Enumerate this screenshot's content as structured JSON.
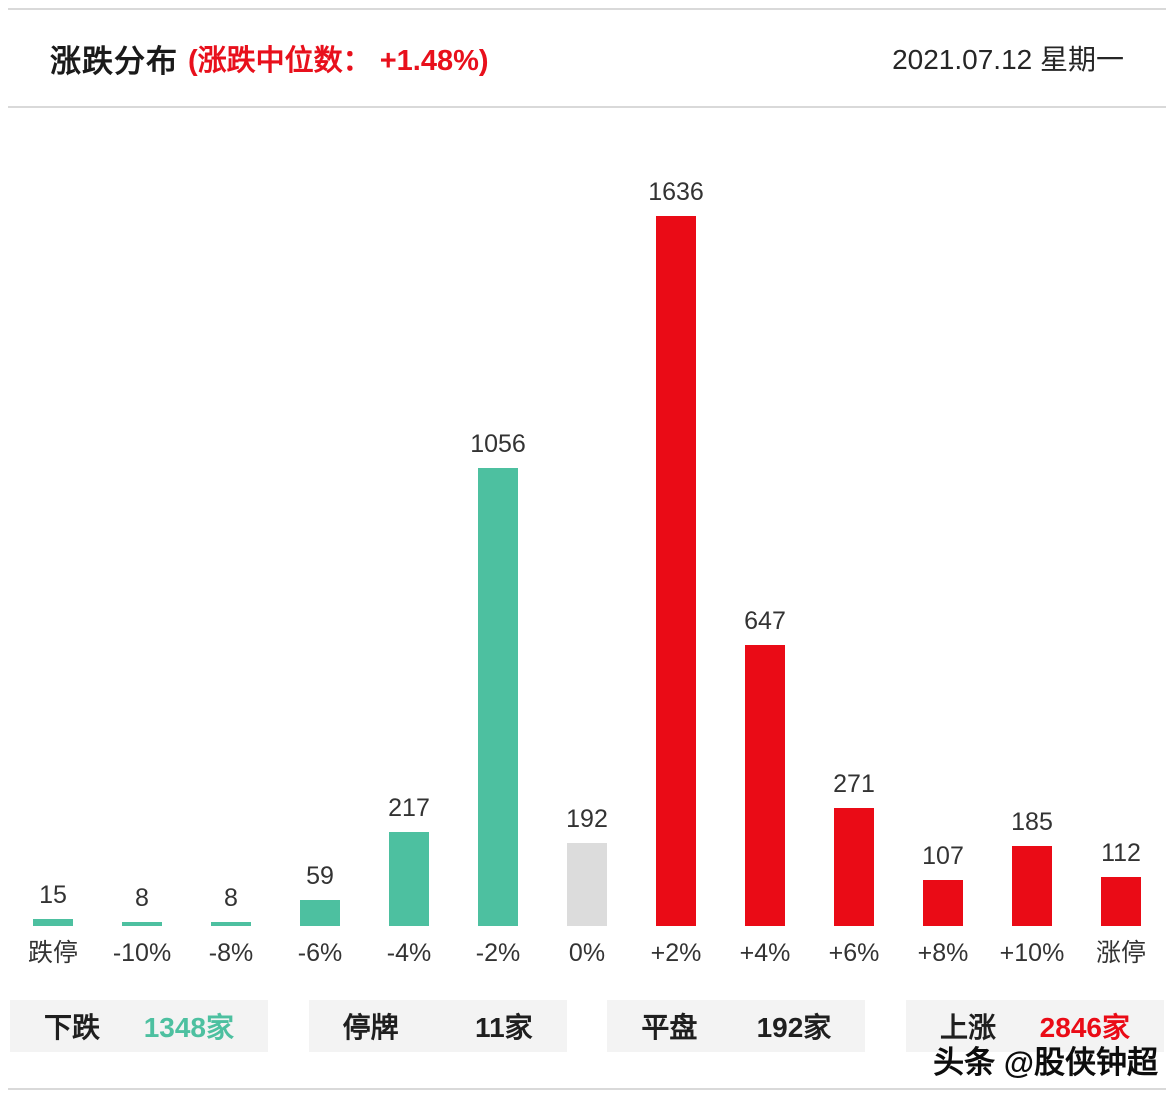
{
  "header": {
    "title": "涨跌分布",
    "subtitle": "(涨跌中位数： +1.48%)",
    "date": "2021.07.12 星期一"
  },
  "chart_data": {
    "type": "bar",
    "title": "涨跌分布",
    "subtitle": "涨跌中位数 +1.48%",
    "categories": [
      "跌停",
      "-10%",
      "-8%",
      "-6%",
      "-4%",
      "-2%",
      "0%",
      "+2%",
      "+4%",
      "+6%",
      "+8%",
      "+10%",
      "涨停"
    ],
    "values": [
      15,
      8,
      8,
      59,
      217,
      1056,
      192,
      1636,
      647,
      271,
      107,
      185,
      112
    ],
    "bar_colors": [
      "green",
      "green",
      "green",
      "green",
      "green",
      "green",
      "gray",
      "red",
      "red",
      "red",
      "red",
      "red",
      "red"
    ],
    "xlabel": "",
    "ylabel": "",
    "ylim": [
      0,
      1700
    ],
    "grid": false,
    "value_labels": true,
    "legend": false
  },
  "summary": [
    {
      "label": "下跌",
      "value": "1348家",
      "color": "green"
    },
    {
      "label": "停牌",
      "value": "11家",
      "color": "dark"
    },
    {
      "label": "平盘",
      "value": "192家",
      "color": "dark"
    },
    {
      "label": "上涨",
      "value": "2846家",
      "color": "red"
    }
  ],
  "colors": {
    "green": "#4dc0a0",
    "red": "#ea0b16",
    "gray": "#dcdcdc",
    "dark": "#1f1f1f"
  },
  "watermark": {
    "text": "头条 @股侠钟超"
  }
}
